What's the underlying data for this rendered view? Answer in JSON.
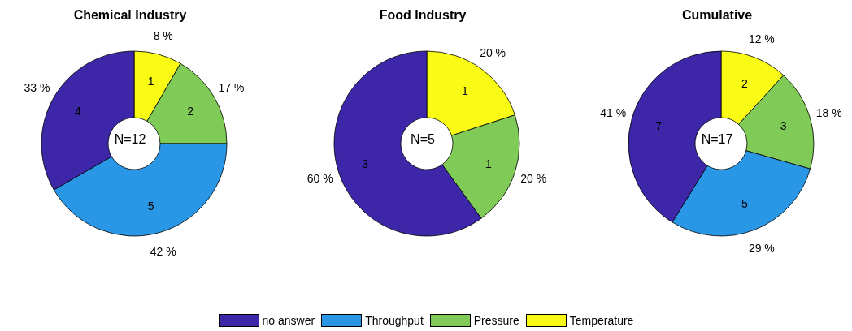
{
  "chart_data": [
    {
      "type": "donut",
      "title": "Chemical Industry",
      "categories": [
        "Temperature",
        "Pressure",
        "Throughput",
        "no answer"
      ],
      "values": [
        1,
        2,
        5,
        4
      ],
      "colors": [
        "#f9fb15",
        "#80cb58",
        "#2a96e6",
        "#3e26a8"
      ],
      "data_labels": true,
      "annotations": [
        "N=12",
        {
          "text": "8 %",
          "x": "Temperature"
        },
        {
          "text": "17 %",
          "x": "Pressure"
        },
        {
          "text": "42 %",
          "x": "Throughput"
        },
        {
          "text": "33 %",
          "x": "no answer"
        }
      ],
      "legend": "bottom"
    },
    {
      "type": "donut",
      "title": "Food Industry",
      "categories": [
        null,
        null,
        null,
        null
      ],
      "values": [
        1,
        1,
        0,
        3
      ],
      "colors": [
        "#f9fb15",
        "#80cb58",
        "#2a96e6",
        "#3e26a8"
      ],
      "data_labels": true,
      "annotations": [
        "N=5",
        "20 %",
        "20 %",
        "60 %"
      ]
    },
    {
      "type": "donut",
      "title": "Cumulative",
      "categories": [
        null,
        null,
        null,
        null
      ],
      "values": [
        2,
        3,
        5,
        7
      ],
      "colors": [
        "#f9fb15",
        "#80cb58",
        "#2a96e6",
        "#3e26a8"
      ],
      "data_labels": true,
      "annotations": [
        "N=17",
        "12 %",
        "18 %",
        "29 %",
        "41 %"
      ]
    }
  ]
}
